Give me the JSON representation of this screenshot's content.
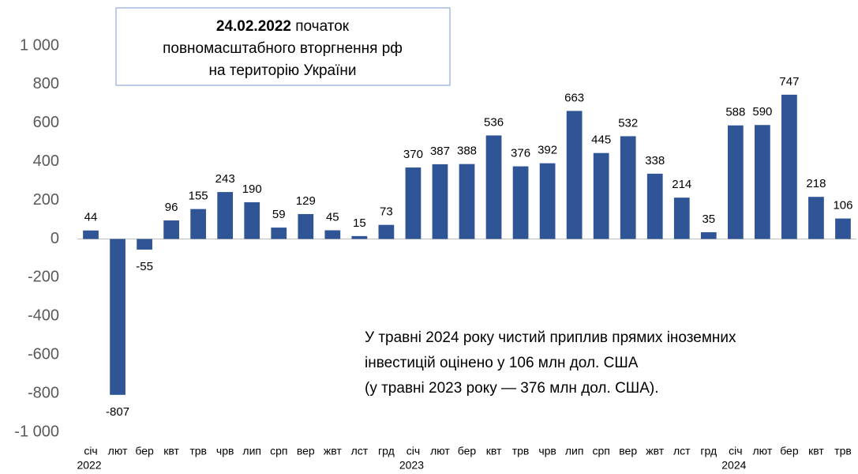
{
  "chart_data": {
    "type": "bar",
    "categories": [
      "січ",
      "лют",
      "бер",
      "квт",
      "трв",
      "чрв",
      "лип",
      "срп",
      "вер",
      "жвт",
      "лст",
      "грд",
      "січ",
      "лют",
      "бер",
      "квт",
      "трв",
      "чрв",
      "лип",
      "срп",
      "вер",
      "жвт",
      "лст",
      "грд",
      "січ",
      "лют",
      "бер",
      "квт",
      "трв"
    ],
    "category_years": [
      "2022",
      null,
      null,
      null,
      null,
      null,
      null,
      null,
      null,
      null,
      null,
      null,
      "2023",
      null,
      null,
      null,
      null,
      null,
      null,
      null,
      null,
      null,
      null,
      null,
      "2024",
      null,
      null,
      null,
      null
    ],
    "values": [
      44,
      -807,
      -55,
      96,
      155,
      243,
      190,
      59,
      129,
      45,
      15,
      73,
      370,
      387,
      388,
      536,
      376,
      392,
      663,
      445,
      532,
      338,
      214,
      35,
      588,
      590,
      747,
      218,
      106
    ],
    "color": "#2f5597",
    "ylim": [
      -1000,
      1000
    ],
    "yticks": [
      {
        "value": -1000,
        "label": "-1 000"
      },
      -800,
      -600,
      -400,
      -200,
      0,
      200,
      400,
      600,
      800,
      {
        "value": 1000,
        "label": "1 000"
      }
    ],
    "annotations": {
      "box": {
        "bold": "24.02.2022",
        "text": " початок",
        "lines": [
          "повномасштабного вторгнення рф",
          "на територію України"
        ]
      },
      "note": [
        "У травні 2024 року чистий приплив прямих іноземних",
        "інвестицій оцінено у 106 млн дол. США",
        "(у травні 2023 року — 376 млн дол. США)."
      ]
    }
  }
}
